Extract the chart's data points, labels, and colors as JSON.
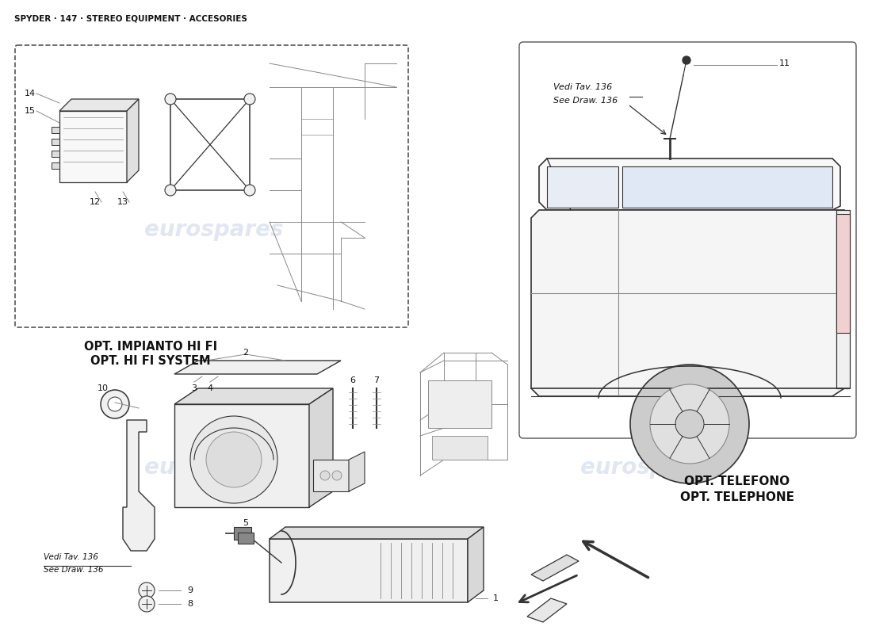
{
  "title": "SPYDER · 147 · STEREO EQUIPMENT · ACCESORIES",
  "bg_color": "#ffffff",
  "watermark_text": "eurospares",
  "watermark_color": "#c8d4e8",
  "watermark_alpha": 0.55,
  "hifi_label_line1": "OPT. IMPIANTO HI FI",
  "hifi_label_line2": "OPT. HI FI SYSTEM",
  "telephone_label_line1": "OPT. TELEFONO",
  "telephone_label_line2": "OPT. TELEPHONE",
  "line_color": "#333333",
  "light_line": "#888888"
}
